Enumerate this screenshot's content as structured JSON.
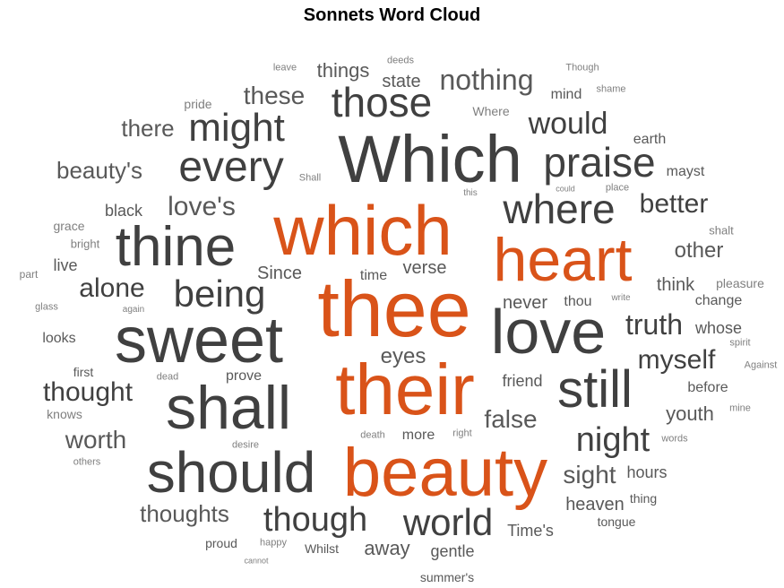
{
  "title": "Sonnets Word Cloud",
  "colors": {
    "highlight": "#d95319",
    "dark": "#404040",
    "mid": "#595959",
    "light": "#7f7f7f"
  },
  "words": [
    {
      "text": "which",
      "tone": "highlight"
    },
    {
      "text": "thee",
      "tone": "highlight"
    },
    {
      "text": "their",
      "tone": "highlight"
    },
    {
      "text": "beauty",
      "tone": "highlight"
    },
    {
      "text": "heart",
      "tone": "highlight"
    },
    {
      "text": "Which",
      "tone": "dark"
    },
    {
      "text": "sweet",
      "tone": "dark"
    },
    {
      "text": "should",
      "tone": "dark"
    },
    {
      "text": "shall",
      "tone": "dark"
    },
    {
      "text": "love",
      "tone": "dark"
    },
    {
      "text": "thine",
      "tone": "dark"
    },
    {
      "text": "still",
      "tone": "dark"
    },
    {
      "text": "every",
      "tone": "dark"
    },
    {
      "text": "praise",
      "tone": "dark"
    },
    {
      "text": "those",
      "tone": "dark"
    },
    {
      "text": "where",
      "tone": "dark"
    },
    {
      "text": "world",
      "tone": "dark"
    },
    {
      "text": "might",
      "tone": "dark"
    },
    {
      "text": "being",
      "tone": "dark"
    },
    {
      "text": "though",
      "tone": "dark"
    },
    {
      "text": "night",
      "tone": "dark"
    },
    {
      "text": "would",
      "tone": "dark"
    },
    {
      "text": "nothing",
      "tone": "mid"
    },
    {
      "text": "thought",
      "tone": "dark"
    },
    {
      "text": "alone",
      "tone": "dark"
    },
    {
      "text": "truth",
      "tone": "dark"
    },
    {
      "text": "myself",
      "tone": "dark"
    },
    {
      "text": "better",
      "tone": "dark"
    },
    {
      "text": "these",
      "tone": "mid"
    },
    {
      "text": "beauty's",
      "tone": "mid"
    },
    {
      "text": "love's",
      "tone": "mid"
    },
    {
      "text": "worth",
      "tone": "mid"
    },
    {
      "text": "thoughts",
      "tone": "mid"
    },
    {
      "text": "sight",
      "tone": "mid"
    },
    {
      "text": "false",
      "tone": "mid"
    },
    {
      "text": "there",
      "tone": "mid"
    },
    {
      "text": "other",
      "tone": "mid"
    },
    {
      "text": "youth",
      "tone": "mid"
    },
    {
      "text": "eyes",
      "tone": "mid"
    },
    {
      "text": "away",
      "tone": "mid"
    },
    {
      "text": "heaven",
      "tone": "mid"
    },
    {
      "text": "things",
      "tone": "mid"
    },
    {
      "text": "verse",
      "tone": "mid"
    },
    {
      "text": "Since",
      "tone": "mid"
    },
    {
      "text": "think",
      "tone": "mid"
    },
    {
      "text": "never",
      "tone": "mid"
    },
    {
      "text": "state",
      "tone": "mid"
    },
    {
      "text": "black",
      "tone": "mid"
    },
    {
      "text": "Time's",
      "tone": "mid"
    },
    {
      "text": "gentle",
      "tone": "mid"
    },
    {
      "text": "friend",
      "tone": "mid"
    },
    {
      "text": "hours",
      "tone": "mid"
    },
    {
      "text": "whose",
      "tone": "mid"
    },
    {
      "text": "change",
      "tone": "mid"
    },
    {
      "text": "before",
      "tone": "mid"
    },
    {
      "text": "looks",
      "tone": "mid"
    },
    {
      "text": "more",
      "tone": "mid"
    },
    {
      "text": "time",
      "tone": "mid"
    },
    {
      "text": "prove",
      "tone": "mid"
    },
    {
      "text": "mind",
      "tone": "mid"
    },
    {
      "text": "live",
      "tone": "mid"
    },
    {
      "text": "thou",
      "tone": "mid"
    },
    {
      "text": "earth",
      "tone": "mid"
    },
    {
      "text": "mayst",
      "tone": "mid"
    },
    {
      "text": "Whilst",
      "tone": "mid"
    },
    {
      "text": "thing",
      "tone": "mid"
    },
    {
      "text": "tongue",
      "tone": "mid"
    },
    {
      "text": "proud",
      "tone": "mid"
    },
    {
      "text": "summer's",
      "tone": "mid"
    },
    {
      "text": "first",
      "tone": "mid"
    },
    {
      "text": "pleasure",
      "tone": "light"
    },
    {
      "text": "Where",
      "tone": "light"
    },
    {
      "text": "pride",
      "tone": "light"
    },
    {
      "text": "grace",
      "tone": "light"
    },
    {
      "text": "bright",
      "tone": "light"
    },
    {
      "text": "knows",
      "tone": "light"
    },
    {
      "text": "shalt",
      "tone": "light"
    },
    {
      "text": "deeds",
      "tone": "light"
    },
    {
      "text": "leave",
      "tone": "light"
    },
    {
      "text": "Though",
      "tone": "light"
    },
    {
      "text": "shame",
      "tone": "light"
    },
    {
      "text": "part",
      "tone": "light"
    },
    {
      "text": "glass",
      "tone": "light"
    },
    {
      "text": "again",
      "tone": "light"
    },
    {
      "text": "dead",
      "tone": "light"
    },
    {
      "text": "others",
      "tone": "light"
    },
    {
      "text": "desire",
      "tone": "light"
    },
    {
      "text": "death",
      "tone": "light"
    },
    {
      "text": "right",
      "tone": "light"
    },
    {
      "text": "happy",
      "tone": "light"
    },
    {
      "text": "cannot",
      "tone": "light"
    },
    {
      "text": "Shall",
      "tone": "light"
    },
    {
      "text": "this",
      "tone": "light"
    },
    {
      "text": "could",
      "tone": "light"
    },
    {
      "text": "place",
      "tone": "light"
    },
    {
      "text": "write",
      "tone": "light"
    },
    {
      "text": "spirit",
      "tone": "light"
    },
    {
      "text": "Against",
      "tone": "light"
    },
    {
      "text": "mine",
      "tone": "light"
    },
    {
      "text": "words",
      "tone": "light"
    }
  ]
}
